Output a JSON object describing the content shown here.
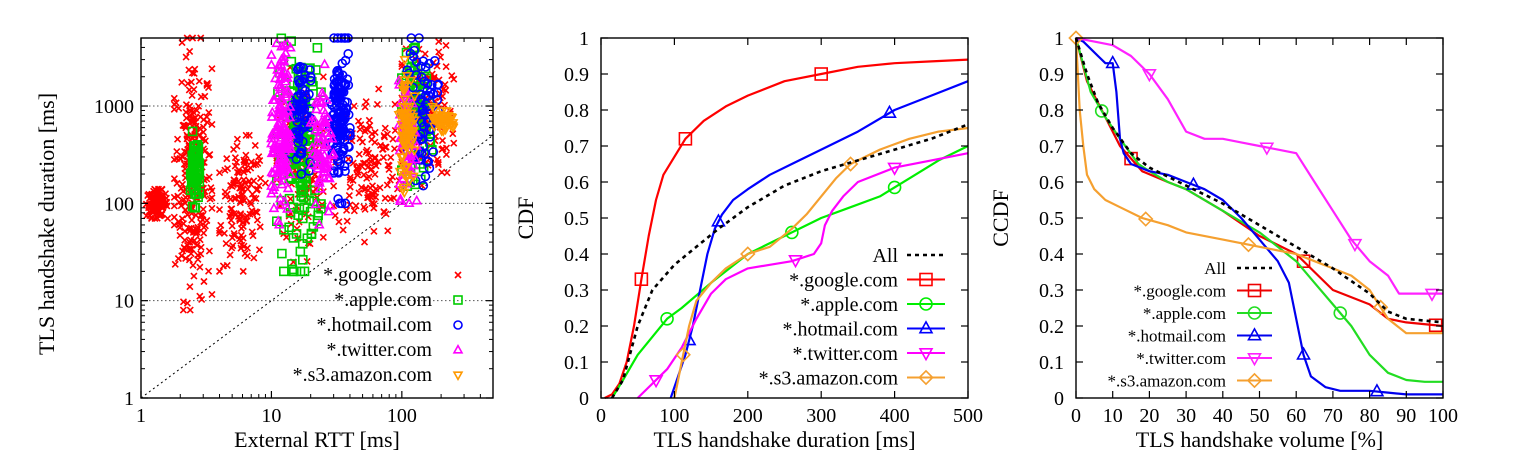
{
  "chart_data": [
    {
      "type": "scatter",
      "xlabel": "External RTT [ms]",
      "ylabel": "TLS handshake duration [ms]",
      "xscale": "log",
      "yscale": "log",
      "xlim": [
        1,
        500
      ],
      "ylim": [
        1,
        5000
      ],
      "xticks": [
        1,
        10,
        100
      ],
      "xtick_labels": [
        "1",
        "10",
        "100"
      ],
      "yticks": [
        1,
        10,
        100,
        1000
      ],
      "ytick_labels": [
        "1",
        "10",
        "100",
        "1000"
      ],
      "grid": "horizontal dotted",
      "reference_line": "y = x",
      "legend_position": "bottom-right",
      "series": [
        {
          "name": "*.google.com",
          "marker": "x",
          "color": "#ff0000",
          "clusters": [
            {
              "x": [
                1.8,
                3.5
              ],
              "y": [
                8,
                5000
              ]
            },
            {
              "x": [
                1.1,
                1.6
              ],
              "y": [
                70,
                140
              ]
            },
            {
              "x": [
                4,
                9
              ],
              "y": [
                20,
                500
              ]
            },
            {
              "x": [
                11,
                25
              ],
              "y": [
                25,
                2500
              ]
            },
            {
              "x": [
                30,
                100
              ],
              "y": [
                40,
                1500
              ]
            },
            {
              "x": [
                100,
                250
              ],
              "y": [
                150,
                5000
              ]
            }
          ]
        },
        {
          "name": "*.apple.com",
          "marker": "square",
          "color": "#00cc00",
          "clusters": [
            {
              "x": [
                11,
                24
              ],
              "y": [
                20,
                5000
              ]
            },
            {
              "x": [
                100,
                170
              ],
              "y": [
                150,
                4000
              ]
            },
            {
              "x": [
                2.4,
                2.8
              ],
              "y": [
                90,
                550
              ]
            }
          ]
        },
        {
          "name": "*.hotmail.com",
          "marker": "circle",
          "color": "#0000ff",
          "clusters": [
            {
              "x": [
                28,
                40
              ],
              "y": [
                100,
                5000
              ]
            },
            {
              "x": [
                110,
                190
              ],
              "y": [
                150,
                5000
              ]
            },
            {
              "x": [
                14,
                20
              ],
              "y": [
                200,
                4000
              ]
            }
          ]
        },
        {
          "name": "*.twitter.com",
          "marker": "triangle-up",
          "color": "#ff00ff",
          "clusters": [
            {
              "x": [
                10,
                14
              ],
              "y": [
                60,
                5000
              ]
            },
            {
              "x": [
                20,
                30
              ],
              "y": [
                60,
                3000
              ]
            },
            {
              "x": [
                95,
                130
              ],
              "y": [
                100,
                2000
              ]
            }
          ]
        },
        {
          "name": "*.s3.amazon.com",
          "marker": "triangle-down",
          "color": "#ff9900",
          "clusters": [
            {
              "x": [
                95,
                125
              ],
              "y": [
                130,
                3000
              ]
            },
            {
              "x": [
                160,
                260
              ],
              "y": [
                500,
                1000
              ]
            }
          ]
        }
      ]
    },
    {
      "type": "line",
      "xlabel": "TLS handshake duration [ms]",
      "ylabel": "CDF",
      "xlim": [
        0,
        500
      ],
      "ylim": [
        0,
        1
      ],
      "xticks": [
        0,
        100,
        200,
        300,
        400,
        500
      ],
      "xtick_labels": [
        "0",
        "100",
        "200",
        "300",
        "400",
        "500"
      ],
      "yticks": [
        0,
        0.1,
        0.2,
        0.3,
        0.4,
        0.5,
        0.6,
        0.7,
        0.8,
        0.9,
        1
      ],
      "ytick_labels": [
        "0",
        "0.1",
        "0.2",
        "0.3",
        "0.4",
        "0.5",
        "0.6",
        "0.7",
        "0.8",
        "0.9",
        "1"
      ],
      "legend_position": "bottom-right",
      "series": [
        {
          "name": "All",
          "color": "#000000",
          "dash": true,
          "marker": "none",
          "x": [
            15,
            30,
            50,
            70,
            100,
            130,
            160,
            200,
            250,
            300,
            350,
            400,
            450,
            500
          ],
          "y": [
            0,
            0.05,
            0.2,
            0.3,
            0.37,
            0.42,
            0.47,
            0.53,
            0.59,
            0.63,
            0.66,
            0.69,
            0.72,
            0.76
          ],
          "marker_x": []
        },
        {
          "name": "*.google.com",
          "color": "#ff0000",
          "marker": "square",
          "x": [
            5,
            15,
            25,
            35,
            45,
            55,
            65,
            75,
            85,
            100,
            115,
            140,
            170,
            200,
            250,
            300,
            350,
            400,
            450,
            500
          ],
          "y": [
            0,
            0.01,
            0.04,
            0.1,
            0.2,
            0.33,
            0.45,
            0.55,
            0.62,
            0.67,
            0.72,
            0.77,
            0.81,
            0.84,
            0.88,
            0.9,
            0.92,
            0.93,
            0.935,
            0.94
          ],
          "marker_x": [
            55,
            115,
            300
          ]
        },
        {
          "name": "*.apple.com",
          "color": "#00ee00",
          "marker": "circle",
          "x": [
            15,
            30,
            50,
            70,
            90,
            110,
            150,
            200,
            250,
            300,
            340,
            380,
            420,
            460,
            500
          ],
          "y": [
            0,
            0.05,
            0.12,
            0.17,
            0.22,
            0.25,
            0.32,
            0.4,
            0.45,
            0.5,
            0.53,
            0.56,
            0.61,
            0.66,
            0.7
          ],
          "marker_x": [
            90,
            260,
            400
          ]
        },
        {
          "name": "*.hotmail.com",
          "color": "#0000ff",
          "marker": "triangle-up",
          "x": [
            95,
            105,
            115,
            125,
            135,
            145,
            155,
            165,
            180,
            200,
            230,
            260,
            300,
            350,
            400,
            450,
            500
          ],
          "y": [
            0,
            0.06,
            0.12,
            0.2,
            0.3,
            0.4,
            0.47,
            0.51,
            0.55,
            0.58,
            0.62,
            0.65,
            0.69,
            0.74,
            0.8,
            0.84,
            0.88
          ],
          "marker_x": [
            120,
            160,
            393
          ]
        },
        {
          "name": "*.twitter.com",
          "color": "#ff00ff",
          "marker": "triangle-down",
          "x": [
            50,
            70,
            90,
            110,
            130,
            150,
            170,
            200,
            230,
            260,
            290,
            300,
            305,
            315,
            330,
            350,
            400,
            450,
            500
          ],
          "y": [
            0,
            0.04,
            0.08,
            0.14,
            0.22,
            0.29,
            0.33,
            0.36,
            0.37,
            0.38,
            0.4,
            0.43,
            0.48,
            0.52,
            0.56,
            0.6,
            0.64,
            0.66,
            0.68
          ],
          "marker_x": [
            75,
            265,
            400
          ]
        },
        {
          "name": "*.s3.amazon.com",
          "color": "#f5a030",
          "marker": "diamond",
          "x": [
            100,
            105,
            110,
            115,
            120,
            130,
            150,
            170,
            200,
            230,
            260,
            280,
            300,
            320,
            340,
            380,
            420,
            460,
            500
          ],
          "y": [
            0,
            0.05,
            0.1,
            0.15,
            0.2,
            0.27,
            0.32,
            0.36,
            0.4,
            0.42,
            0.47,
            0.51,
            0.56,
            0.61,
            0.65,
            0.69,
            0.72,
            0.74,
            0.75
          ],
          "marker_x": [
            112,
            200,
            340
          ]
        }
      ]
    },
    {
      "type": "line",
      "xlabel": "TLS handshake volume [%]",
      "ylabel": "CCDF",
      "xlim": [
        0,
        100
      ],
      "ylim": [
        0,
        1
      ],
      "xticks": [
        0,
        10,
        20,
        30,
        40,
        50,
        60,
        70,
        80,
        90,
        100
      ],
      "xtick_labels": [
        "0",
        "10",
        "20",
        "30",
        "40",
        "50",
        "60",
        "70",
        "80",
        "90",
        "100"
      ],
      "yticks": [
        0,
        0.1,
        0.2,
        0.3,
        0.4,
        0.5,
        0.6,
        0.7,
        0.8,
        0.9,
        1
      ],
      "ytick_labels": [
        "0",
        "0.1",
        "0.2",
        "0.3",
        "0.4",
        "0.5",
        "0.6",
        "0.7",
        "0.8",
        "0.9",
        "1"
      ],
      "legend_position": "bottom-left",
      "series": [
        {
          "name": "All",
          "color": "#000000",
          "dash": true,
          "marker": "none",
          "x": [
            0,
            3,
            6,
            10,
            15,
            20,
            30,
            40,
            50,
            60,
            70,
            80,
            85,
            90,
            100
          ],
          "y": [
            1,
            0.9,
            0.82,
            0.75,
            0.68,
            0.64,
            0.59,
            0.54,
            0.48,
            0.42,
            0.36,
            0.29,
            0.24,
            0.22,
            0.21
          ],
          "marker_x": []
        },
        {
          "name": "*.google.com",
          "color": "#ee0000",
          "marker": "square",
          "x": [
            0,
            3,
            7,
            12,
            18,
            25,
            30,
            40,
            50,
            60,
            65,
            70,
            80,
            85,
            90,
            100
          ],
          "y": [
            1,
            0.88,
            0.8,
            0.7,
            0.63,
            0.6,
            0.58,
            0.52,
            0.45,
            0.4,
            0.35,
            0.3,
            0.26,
            0.22,
            0.21,
            0.2
          ],
          "marker_x": [
            15,
            62,
            98
          ]
        },
        {
          "name": "*.apple.com",
          "color": "#22dd22",
          "marker": "circle",
          "x": [
            0,
            4,
            8,
            12,
            17,
            20,
            25,
            30,
            40,
            50,
            55,
            60,
            65,
            70,
            75,
            80,
            85,
            90,
            95,
            100
          ],
          "y": [
            1,
            0.85,
            0.78,
            0.72,
            0.65,
            0.63,
            0.6,
            0.58,
            0.52,
            0.46,
            0.42,
            0.38,
            0.32,
            0.26,
            0.2,
            0.12,
            0.07,
            0.05,
            0.045,
            0.045
          ],
          "marker_x": [
            7,
            72
          ]
        },
        {
          "name": "*.hotmail.com",
          "color": "#0000ee",
          "marker": "triangle-up",
          "x": [
            0,
            2,
            4,
            6,
            8,
            10,
            11,
            12,
            13,
            15,
            20,
            25,
            30,
            35,
            40,
            45,
            50,
            55,
            58,
            60,
            62,
            64,
            68,
            72,
            80,
            85,
            90,
            100
          ],
          "y": [
            1,
            0.99,
            0.97,
            0.95,
            0.93,
            0.93,
            0.85,
            0.72,
            0.68,
            0.65,
            0.63,
            0.62,
            0.6,
            0.58,
            0.55,
            0.5,
            0.44,
            0.38,
            0.32,
            0.22,
            0.12,
            0.06,
            0.03,
            0.02,
            0.02,
            0.015,
            0.01,
            0.01
          ],
          "marker_x": [
            10,
            32,
            62,
            82
          ]
        },
        {
          "name": "*.twitter.com",
          "color": "#ff22ff",
          "marker": "triangle-down",
          "x": [
            0,
            5,
            10,
            15,
            20,
            25,
            30,
            35,
            40,
            45,
            50,
            55,
            60,
            65,
            70,
            75,
            80,
            85,
            88,
            90,
            100
          ],
          "y": [
            1,
            0.99,
            0.98,
            0.95,
            0.9,
            0.83,
            0.74,
            0.72,
            0.72,
            0.71,
            0.7,
            0.69,
            0.68,
            0.6,
            0.52,
            0.44,
            0.38,
            0.34,
            0.29,
            0.29,
            0.29
          ],
          "marker_x": [
            20,
            52,
            76,
            97
          ]
        },
        {
          "name": "*.s3.amazon.com",
          "color": "#f5a030",
          "marker": "diamond",
          "x": [
            0,
            1,
            2,
            3,
            5,
            8,
            12,
            18,
            25,
            30,
            40,
            50,
            55,
            60,
            65,
            70,
            75,
            80,
            85,
            90,
            100
          ],
          "y": [
            1,
            0.8,
            0.7,
            0.62,
            0.58,
            0.55,
            0.53,
            0.5,
            0.48,
            0.46,
            0.44,
            0.42,
            0.41,
            0.4,
            0.38,
            0.36,
            0.34,
            0.3,
            0.22,
            0.18,
            0.18
          ],
          "marker_x": [
            0,
            19,
            47,
            83
          ]
        }
      ]
    }
  ]
}
